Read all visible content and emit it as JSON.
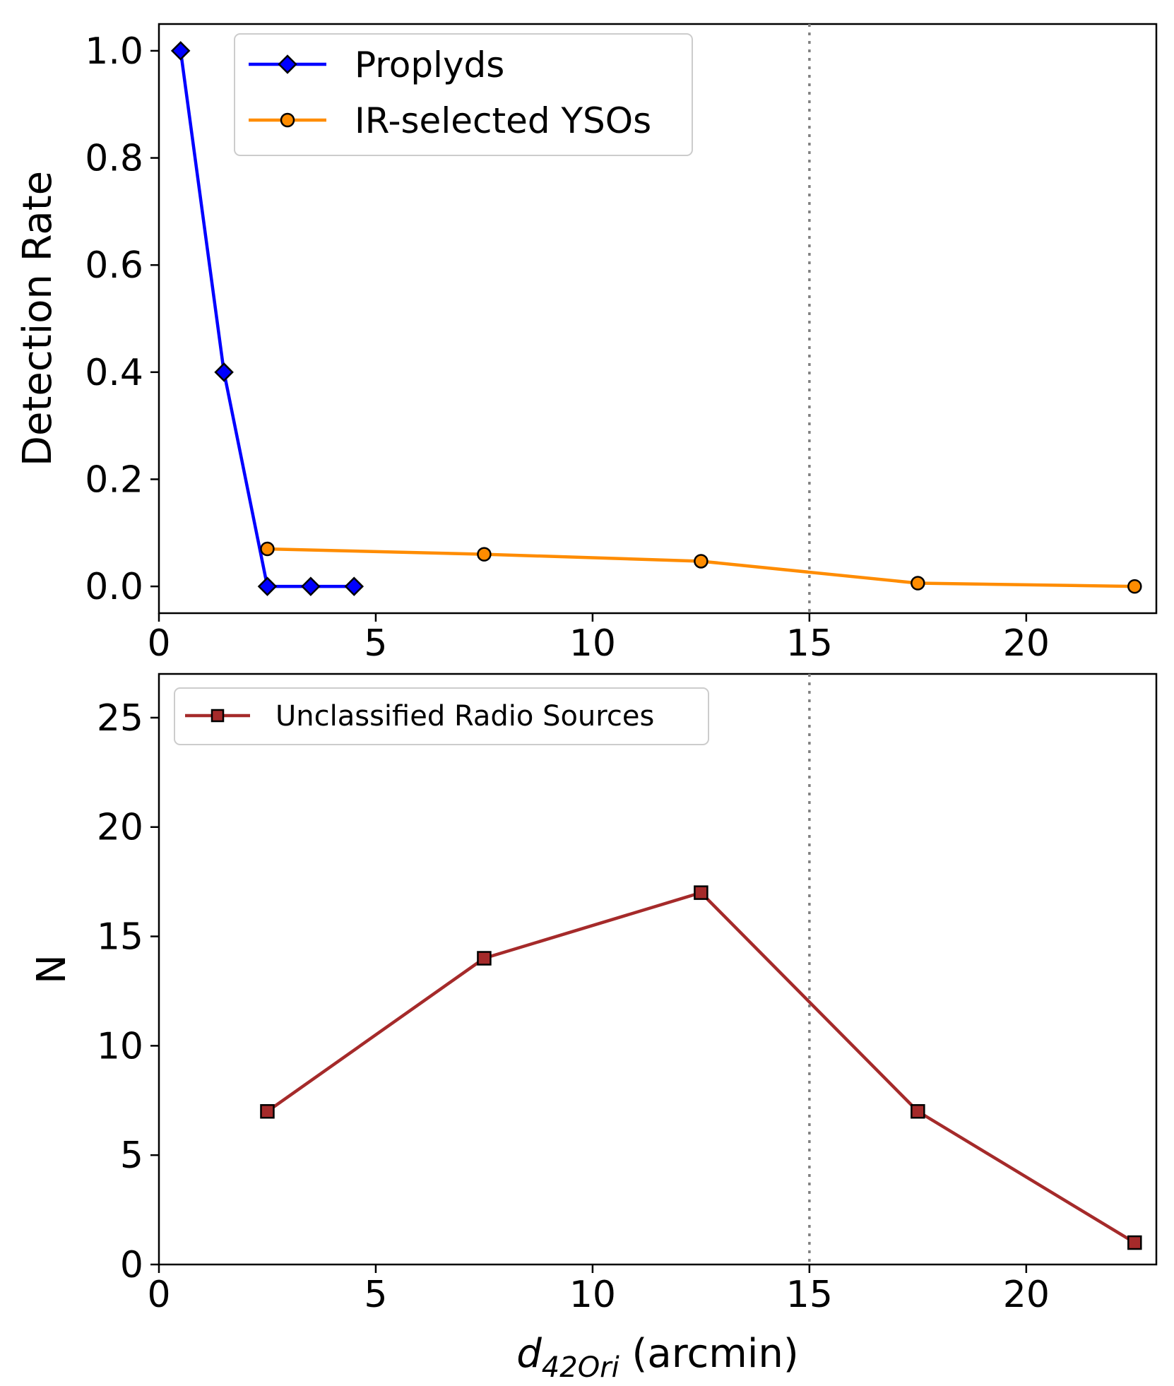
{
  "chart_data": [
    {
      "id": "top",
      "type": "line",
      "xlabel": "",
      "ylabel": "Detection Rate",
      "xlim": [
        0,
        23
      ],
      "ylim": [
        -0.05,
        1.05
      ],
      "xticks": [
        0,
        5,
        10,
        15,
        20
      ],
      "yticks": [
        0.0,
        0.2,
        0.4,
        0.6,
        0.8,
        1.0
      ],
      "xtick_labels": [
        "0",
        "5",
        "10",
        "15",
        "20"
      ],
      "ytick_labels": [
        "0.0",
        "0.2",
        "0.4",
        "0.6",
        "0.8",
        "1.0"
      ],
      "vline": 15,
      "legend_position": "top-left",
      "series": [
        {
          "name": "Proplyds",
          "color": "#0000ff",
          "marker": "diamond",
          "x": [
            0.5,
            1.5,
            2.5,
            3.5,
            4.5
          ],
          "y": [
            1.0,
            0.4,
            0.0,
            0.0,
            0.0
          ]
        },
        {
          "name": "IR-selected YSOs",
          "color": "#ff8c00",
          "marker": "circle",
          "x": [
            2.5,
            7.5,
            12.5,
            17.5,
            22.5
          ],
          "y": [
            0.07,
            0.06,
            0.047,
            0.006,
            0.0
          ]
        }
      ]
    },
    {
      "id": "bottom",
      "type": "line",
      "xlabel_main": "d",
      "xlabel_sub": "42Ori",
      "xlabel_unit": " (arcmin)",
      "ylabel": "N",
      "xlim": [
        0,
        23
      ],
      "ylim": [
        0,
        27
      ],
      "xticks": [
        0,
        5,
        10,
        15,
        20
      ],
      "yticks": [
        0,
        5,
        10,
        15,
        20,
        25
      ],
      "xtick_labels": [
        "0",
        "5",
        "10",
        "15",
        "20"
      ],
      "ytick_labels": [
        "0",
        "5",
        "10",
        "15",
        "20",
        "25"
      ],
      "vline": 15,
      "legend_position": "top-left",
      "series": [
        {
          "name": "Unclassified Radio Sources",
          "color": "#a52a2a",
          "marker": "square",
          "x": [
            2.5,
            7.5,
            12.5,
            17.5,
            22.5
          ],
          "y": [
            7,
            14,
            17,
            7,
            1
          ]
        }
      ]
    }
  ]
}
